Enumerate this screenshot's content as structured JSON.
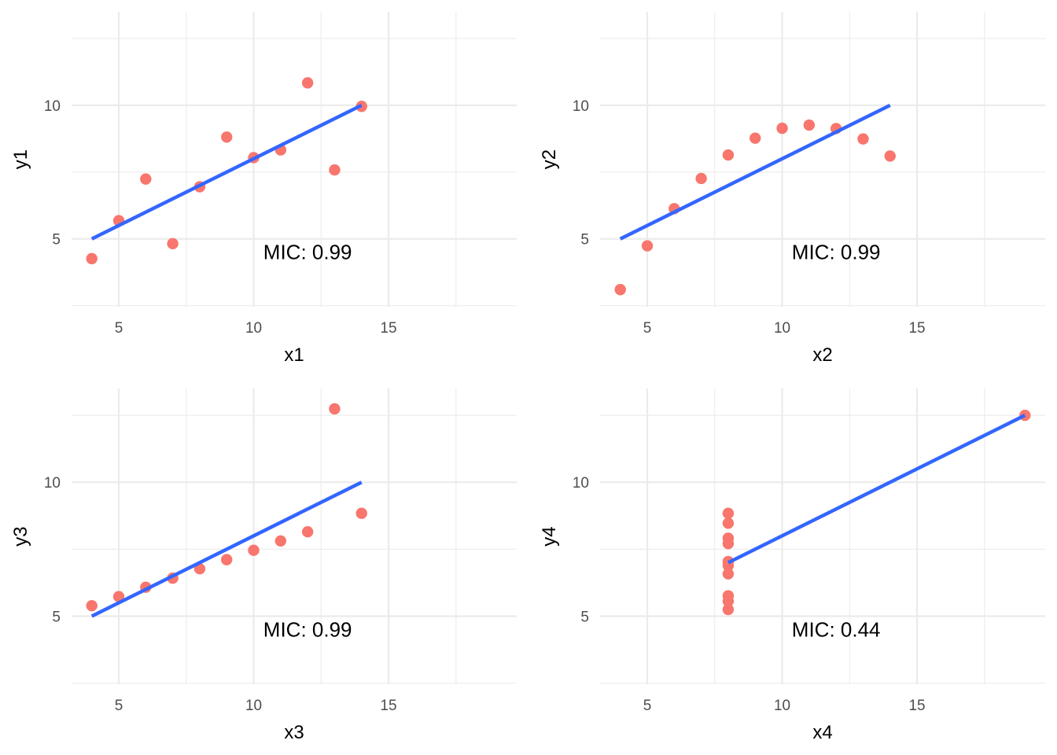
{
  "colors": {
    "point": "#F8766D",
    "line": "#3366FF",
    "grid": "#EBEBEB",
    "tick": "#4D4D4D"
  },
  "chart_data": [
    {
      "type": "scatter",
      "panel": "top-left",
      "xlabel": "x1",
      "ylabel": "y1",
      "xlim": [
        3.25,
        19.75
      ],
      "ylim": [
        2.46,
        13.5
      ],
      "xticks": [
        5,
        10,
        15
      ],
      "yticks": [
        5,
        10
      ],
      "points": {
        "x": [
          4,
          5,
          6,
          7,
          8,
          9,
          10,
          11,
          12,
          13,
          14
        ],
        "y": [
          4.26,
          5.68,
          7.24,
          4.82,
          6.95,
          8.81,
          8.04,
          8.33,
          10.84,
          7.58,
          9.96
        ]
      },
      "fit_line": {
        "x": [
          4,
          14
        ],
        "y": [
          5.0,
          10.0
        ]
      },
      "annotation": {
        "text": "MIC: 0.99",
        "x": 12,
        "y": 4.5
      }
    },
    {
      "type": "scatter",
      "panel": "top-right",
      "xlabel": "x2",
      "ylabel": "y2",
      "xlim": [
        3.25,
        19.75
      ],
      "ylim": [
        2.46,
        13.5
      ],
      "xticks": [
        5,
        10,
        15
      ],
      "yticks": [
        5,
        10
      ],
      "points": {
        "x": [
          4,
          5,
          6,
          7,
          8,
          9,
          10,
          11,
          12,
          13,
          14
        ],
        "y": [
          3.1,
          4.74,
          6.13,
          7.26,
          8.14,
          8.77,
          9.14,
          9.26,
          9.13,
          8.74,
          8.1
        ]
      },
      "fit_line": {
        "x": [
          4,
          14
        ],
        "y": [
          5.0,
          10.0
        ]
      },
      "annotation": {
        "text": "MIC: 0.99",
        "x": 12,
        "y": 4.5
      }
    },
    {
      "type": "scatter",
      "panel": "bottom-left",
      "xlabel": "x3",
      "ylabel": "y3",
      "xlim": [
        3.25,
        19.75
      ],
      "ylim": [
        2.46,
        13.5
      ],
      "xticks": [
        5,
        10,
        15
      ],
      "yticks": [
        5,
        10
      ],
      "points": {
        "x": [
          4,
          5,
          6,
          7,
          8,
          9,
          10,
          11,
          12,
          13,
          14
        ],
        "y": [
          5.39,
          5.73,
          6.08,
          6.42,
          6.77,
          7.11,
          7.46,
          7.81,
          8.15,
          12.74,
          8.84
        ]
      },
      "fit_line": {
        "x": [
          4,
          14
        ],
        "y": [
          5.0,
          10.0
        ]
      },
      "annotation": {
        "text": "MIC: 0.99",
        "x": 12,
        "y": 4.5
      }
    },
    {
      "type": "scatter",
      "panel": "bottom-right",
      "xlabel": "x4",
      "ylabel": "y4",
      "xlim": [
        3.25,
        19.75
      ],
      "ylim": [
        2.46,
        13.5
      ],
      "xticks": [
        5,
        10,
        15
      ],
      "yticks": [
        5,
        10
      ],
      "points": {
        "x": [
          8,
          8,
          8,
          8,
          8,
          8,
          8,
          19,
          8,
          8,
          8
        ],
        "y": [
          6.58,
          5.76,
          7.71,
          8.84,
          8.47,
          7.04,
          5.25,
          12.5,
          5.56,
          7.91,
          6.89
        ]
      },
      "fit_line": {
        "x": [
          8,
          19
        ],
        "y": [
          7.0,
          12.5
        ]
      },
      "annotation": {
        "text": "MIC: 0.44",
        "x": 12,
        "y": 4.5
      }
    }
  ]
}
